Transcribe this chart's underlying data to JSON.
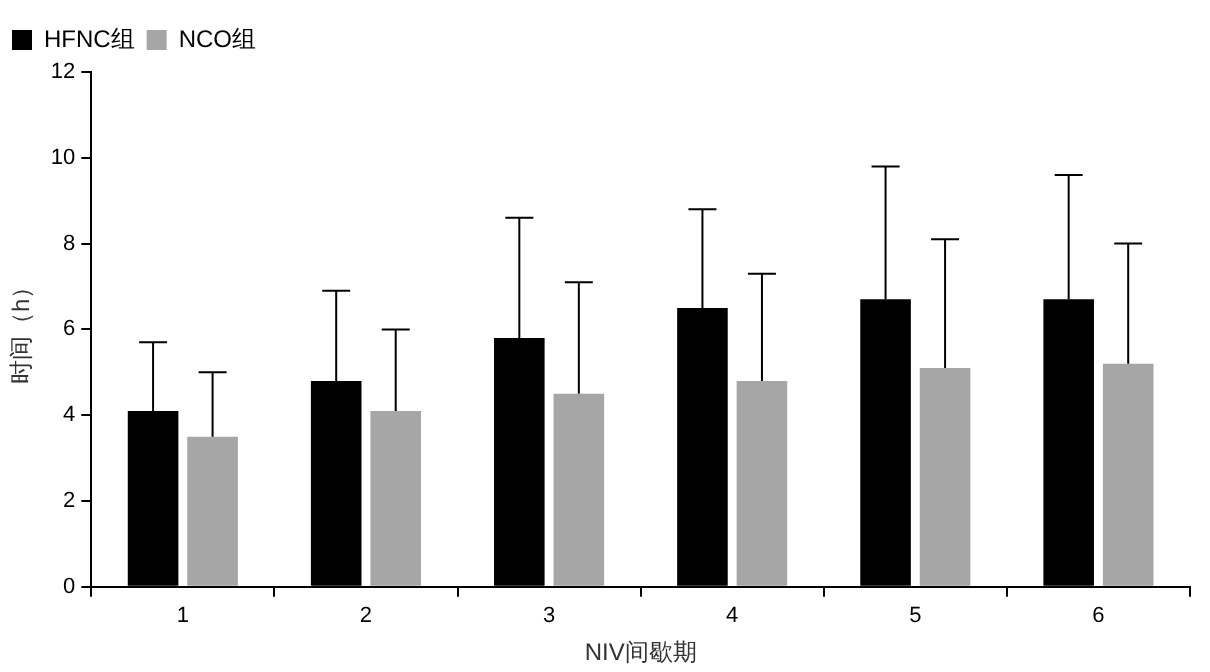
{
  "chart_data": {
    "type": "bar",
    "xlabel": "NIV间歇期",
    "ylabel": "时间（h）",
    "categories": [
      "1",
      "2",
      "3",
      "4",
      "5",
      "6"
    ],
    "series": [
      {
        "name": "HFNC组",
        "color": "#000000",
        "values": [
          4.1,
          4.8,
          5.8,
          6.5,
          6.7,
          6.7
        ],
        "errors": [
          [
            4.1,
            5.7
          ],
          [
            4.8,
            6.9
          ],
          [
            5.8,
            8.6
          ],
          [
            6.5,
            8.8
          ],
          [
            6.7,
            9.8
          ],
          [
            6.7,
            9.6
          ]
        ]
      },
      {
        "name": "NCO组",
        "color": "#a6a6a6",
        "values": [
          3.5,
          4.1,
          4.5,
          4.8,
          5.1,
          5.2
        ],
        "errors": [
          [
            3.5,
            5.0
          ],
          [
            4.1,
            6.0
          ],
          [
            4.5,
            7.1
          ],
          [
            4.8,
            7.3
          ],
          [
            5.1,
            8.1
          ],
          [
            5.2,
            8.0
          ]
        ]
      }
    ],
    "ylim": [
      0,
      12
    ],
    "yticks": [
      0,
      2,
      4,
      6,
      8,
      10,
      12
    ],
    "grid": false,
    "legend": "top left"
  }
}
